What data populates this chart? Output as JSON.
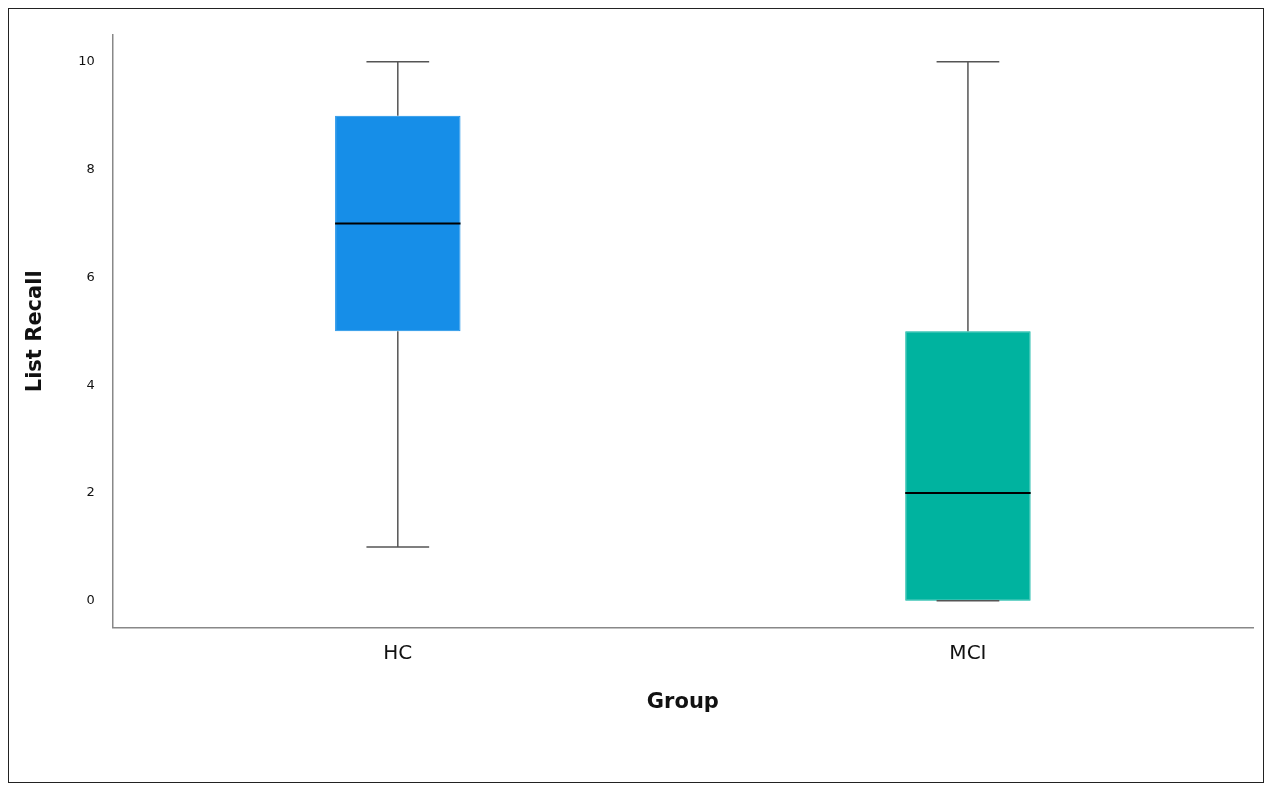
{
  "chart_data": {
    "type": "box",
    "xlabel": "Group",
    "ylabel": "List Recall",
    "categories": [
      "HC",
      "MCI"
    ],
    "colors": [
      "#168ee8",
      "#00b39f"
    ],
    "boxes": [
      {
        "low": 1,
        "q1": 5,
        "median": 7,
        "q3": 9,
        "high": 10
      },
      {
        "low": 0,
        "q1": 0,
        "median": 2,
        "q3": 5,
        "high": 10
      }
    ],
    "ylim": [
      -0.5,
      10.5
    ],
    "yticks": [
      0,
      2,
      4,
      6,
      8,
      10
    ],
    "grid": false,
    "legend": false
  }
}
